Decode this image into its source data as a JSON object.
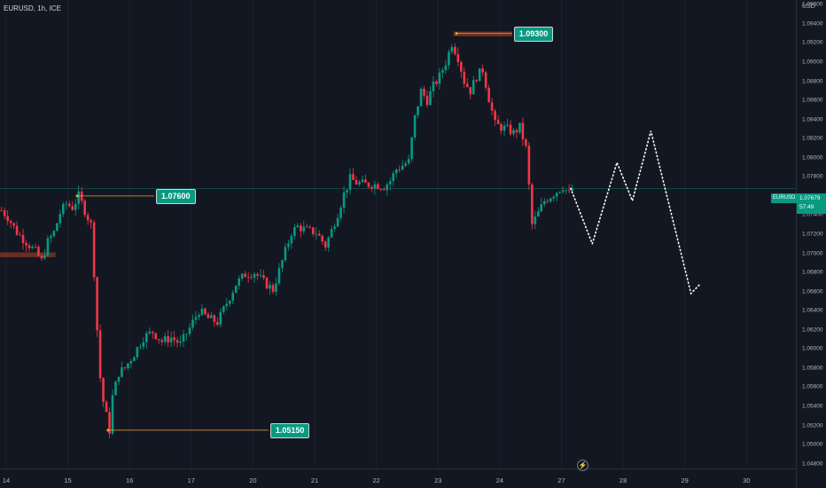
{
  "symbol_title": "EURUSD, 1h, ICE",
  "price_axis": {
    "currency": "USD",
    "ticks": [
      "1.09600",
      "1.09400",
      "1.09200",
      "1.09000",
      "1.08800",
      "1.08600",
      "1.08400",
      "1.08200",
      "1.08000",
      "1.07800",
      "1.07400",
      "1.07200",
      "1.07000",
      "1.06800",
      "1.06600",
      "1.06400",
      "1.06200",
      "1.06000",
      "1.05800",
      "1.05600",
      "1.05400",
      "1.05200",
      "1.05000",
      "1.04800"
    ]
  },
  "time_axis": {
    "ticks": [
      "14",
      "15",
      "16",
      "17",
      "20",
      "21",
      "22",
      "23",
      "24",
      "27",
      "28",
      "29",
      "30"
    ]
  },
  "current_price": {
    "symbol_tag": "EURUSD",
    "value": "1.07679",
    "countdown": "57:49"
  },
  "levels": [
    {
      "label": "1.07600",
      "price": 1.076
    },
    {
      "label": "1.05150",
      "price": 1.0515
    },
    {
      "label": "1.09300",
      "price": 1.093
    }
  ],
  "colors": {
    "background": "#131722",
    "up": "#089981",
    "down": "#f23645",
    "level_line": "#f0a52a",
    "zone": "#7a3326",
    "projection": "#ffffff"
  },
  "chart_data": {
    "type": "candlestick",
    "symbol": "EURUSD",
    "interval": "1h",
    "ylim": [
      1.0475,
      1.0965
    ],
    "x_ticks": [
      "14",
      "15",
      "16",
      "17",
      "20",
      "21",
      "22",
      "23",
      "24",
      "27",
      "28",
      "29",
      "30"
    ],
    "current_price": 1.07679,
    "price_path": [
      {
        "t": 0,
        "p": 1.0745
      },
      {
        "t": 2,
        "p": 1.0738
      },
      {
        "t": 5,
        "p": 1.0722
      },
      {
        "t": 8,
        "p": 1.0712
      },
      {
        "t": 11,
        "p": 1.0702
      },
      {
        "t": 13,
        "p": 1.0692
      },
      {
        "t": 15,
        "p": 1.0712
      },
      {
        "t": 17,
        "p": 1.0722
      },
      {
        "t": 19,
        "p": 1.0742
      },
      {
        "t": 21,
        "p": 1.0752
      },
      {
        "t": 23,
        "p": 1.0748
      },
      {
        "t": 25,
        "p": 1.076
      },
      {
        "t": 27,
        "p": 1.0745
      },
      {
        "t": 29,
        "p": 1.073
      },
      {
        "t": 30,
        "p": 1.068
      },
      {
        "t": 31,
        "p": 1.062
      },
      {
        "t": 32,
        "p": 1.057
      },
      {
        "t": 33,
        "p": 1.0545
      },
      {
        "t": 34,
        "p": 1.053
      },
      {
        "t": 35,
        "p": 1.0515
      },
      {
        "t": 36,
        "p": 1.055
      },
      {
        "t": 38,
        "p": 1.0575
      },
      {
        "t": 40,
        "p": 1.058
      },
      {
        "t": 43,
        "p": 1.0595
      },
      {
        "t": 46,
        "p": 1.0612
      },
      {
        "t": 49,
        "p": 1.0618
      },
      {
        "t": 52,
        "p": 1.0608
      },
      {
        "t": 55,
        "p": 1.0612
      },
      {
        "t": 58,
        "p": 1.0605
      },
      {
        "t": 61,
        "p": 1.0622
      },
      {
        "t": 64,
        "p": 1.064
      },
      {
        "t": 67,
        "p": 1.0632
      },
      {
        "t": 70,
        "p": 1.0628
      },
      {
        "t": 73,
        "p": 1.0648
      },
      {
        "t": 76,
        "p": 1.0668
      },
      {
        "t": 79,
        "p": 1.0678
      },
      {
        "t": 82,
        "p": 1.068
      },
      {
        "t": 85,
        "p": 1.067
      },
      {
        "t": 88,
        "p": 1.0662
      },
      {
        "t": 90,
        "p": 1.0682
      },
      {
        "t": 92,
        "p": 1.0702
      },
      {
        "t": 94,
        "p": 1.0722
      },
      {
        "t": 96,
        "p": 1.0728
      },
      {
        "t": 99,
        "p": 1.0724
      },
      {
        "t": 102,
        "p": 1.0722
      },
      {
        "t": 105,
        "p": 1.0708
      },
      {
        "t": 107,
        "p": 1.0724
      },
      {
        "t": 109,
        "p": 1.0742
      },
      {
        "t": 111,
        "p": 1.0762
      },
      {
        "t": 113,
        "p": 1.0778
      },
      {
        "t": 115,
        "p": 1.0774
      },
      {
        "t": 118,
        "p": 1.0772
      },
      {
        "t": 121,
        "p": 1.0772
      },
      {
        "t": 124,
        "p": 1.077
      },
      {
        "t": 126,
        "p": 1.0776
      },
      {
        "t": 128,
        "p": 1.0788
      },
      {
        "t": 130,
        "p": 1.0792
      },
      {
        "t": 132,
        "p": 1.0796
      },
      {
        "t": 134,
        "p": 1.0842
      },
      {
        "t": 136,
        "p": 1.087
      },
      {
        "t": 138,
        "p": 1.086
      },
      {
        "t": 140,
        "p": 1.0875
      },
      {
        "t": 142,
        "p": 1.0885
      },
      {
        "t": 144,
        "p": 1.09
      },
      {
        "t": 146,
        "p": 1.092
      },
      {
        "t": 148,
        "p": 1.0905
      },
      {
        "t": 150,
        "p": 1.088
      },
      {
        "t": 152,
        "p": 1.087
      },
      {
        "t": 154,
        "p": 1.0885
      },
      {
        "t": 156,
        "p": 1.0892
      },
      {
        "t": 158,
        "p": 1.0862
      },
      {
        "t": 160,
        "p": 1.0835
      },
      {
        "t": 162,
        "p": 1.0832
      },
      {
        "t": 164,
        "p": 1.083
      },
      {
        "t": 166,
        "p": 1.0826
      },
      {
        "t": 168,
        "p": 1.0832
      },
      {
        "t": 170,
        "p": 1.081
      },
      {
        "t": 171,
        "p": 1.077
      },
      {
        "t": 172,
        "p": 1.073
      },
      {
        "t": 174,
        "p": 1.0742
      },
      {
        "t": 176,
        "p": 1.0755
      },
      {
        "t": 178,
        "p": 1.076
      },
      {
        "t": 180,
        "p": 1.0765
      },
      {
        "t": 182,
        "p": 1.077
      },
      {
        "t": 184,
        "p": 1.0762
      },
      {
        "t": 185,
        "p": 1.0768
      }
    ],
    "projection": [
      {
        "t": 185,
        "p": 1.0768
      },
      {
        "t": 192,
        "p": 1.071
      },
      {
        "t": 200,
        "p": 1.0795
      },
      {
        "t": 205,
        "p": 1.0755
      },
      {
        "t": 211,
        "p": 1.0828
      },
      {
        "t": 224,
        "p": 1.0658
      },
      {
        "t": 227,
        "p": 1.0668
      }
    ],
    "time_ticks": [
      {
        "t": 2,
        "label": "14"
      },
      {
        "t": 22,
        "label": "15"
      },
      {
        "t": 42,
        "label": "16"
      },
      {
        "t": 62,
        "label": "17"
      },
      {
        "t": 82,
        "label": "20"
      },
      {
        "t": 102,
        "label": "21"
      },
      {
        "t": 122,
        "label": "22"
      },
      {
        "t": 142,
        "label": "23"
      },
      {
        "t": 162,
        "label": "24"
      },
      {
        "t": 182,
        "label": "27"
      },
      {
        "t": 202,
        "label": "28"
      },
      {
        "t": 222,
        "label": "29"
      },
      {
        "t": 242,
        "label": "30"
      }
    ],
    "horizontal_levels": [
      {
        "label": "1.07600",
        "price": 1.076,
        "t_start": 25,
        "t_end": 50
      },
      {
        "label": "1.05150",
        "price": 1.0515,
        "t_start": 35,
        "t_end": 87
      },
      {
        "label": "1.09300",
        "price": 1.093,
        "t_start": 148,
        "t_end": 166
      }
    ],
    "zones": [
      {
        "price_low": 1.0696,
        "price_high": 1.0701,
        "t_start": 0,
        "t_end": 18
      },
      {
        "price_low": 1.0927,
        "price_high": 1.0932,
        "t_start": 147,
        "t_end": 166
      }
    ]
  }
}
